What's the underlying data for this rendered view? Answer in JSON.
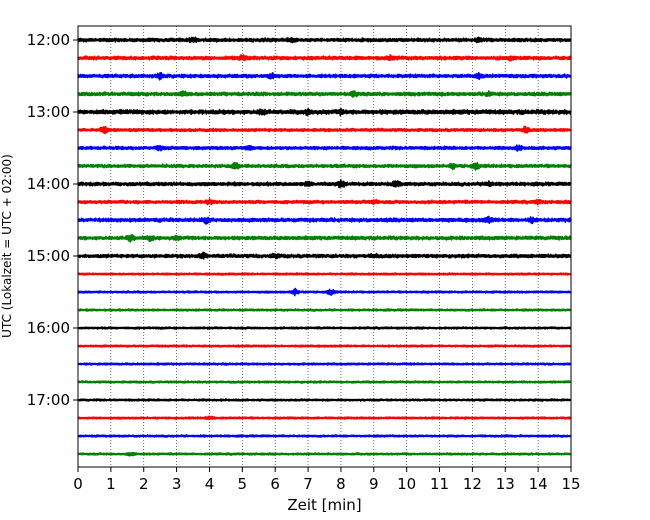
{
  "chart_data": {
    "type": "line",
    "chart_kind": "helicorder",
    "xlabel": "Zeit  [min]",
    "ylabel": "UTC (Lokalzeit = UTC + 02:00)",
    "xlim": [
      0,
      15
    ],
    "x_ticks": [
      "0",
      "1",
      "2",
      "3",
      "4",
      "5",
      "6",
      "7",
      "8",
      "9",
      "10",
      "11",
      "12",
      "13",
      "14",
      "15"
    ],
    "y_ticks": [
      "12:00",
      "13:00",
      "14:00",
      "15:00",
      "16:00",
      "17:00"
    ],
    "vertical_grid": "dotted",
    "colors": [
      "#000000",
      "#ff0000",
      "#0000ff",
      "#008000"
    ],
    "traces": [
      {
        "start": "12:00",
        "color": "#000000",
        "amplitude": 0.22,
        "events": [
          [
            3.5,
            0.35
          ],
          [
            6.5,
            0.3
          ],
          [
            12.2,
            0.3
          ]
        ]
      },
      {
        "start": "12:15",
        "color": "#ff0000",
        "amplitude": 0.22,
        "events": [
          [
            5.0,
            0.3
          ],
          [
            9.5,
            0.25
          ],
          [
            13.2,
            0.3
          ]
        ]
      },
      {
        "start": "12:30",
        "color": "#0000ff",
        "amplitude": 0.22,
        "events": [
          [
            2.5,
            0.35
          ],
          [
            5.9,
            0.3
          ],
          [
            12.2,
            0.3
          ]
        ]
      },
      {
        "start": "12:45",
        "color": "#008000",
        "amplitude": 0.22,
        "events": [
          [
            3.2,
            0.3
          ],
          [
            8.4,
            0.35
          ],
          [
            12.5,
            0.25
          ]
        ]
      },
      {
        "start": "13:00",
        "color": "#000000",
        "amplitude": 0.28,
        "events": [
          [
            5.6,
            0.35
          ],
          [
            7.0,
            0.3
          ],
          [
            8.0,
            0.3
          ]
        ]
      },
      {
        "start": "13:15",
        "color": "#ff0000",
        "amplitude": 0.18,
        "events": [
          [
            0.8,
            0.4
          ],
          [
            13.6,
            0.35
          ]
        ]
      },
      {
        "start": "13:30",
        "color": "#0000ff",
        "amplitude": 0.2,
        "events": [
          [
            2.5,
            0.3
          ],
          [
            5.2,
            0.25
          ],
          [
            13.4,
            0.3
          ]
        ]
      },
      {
        "start": "13:45",
        "color": "#008000",
        "amplitude": 0.2,
        "events": [
          [
            4.8,
            0.35
          ],
          [
            11.4,
            0.3
          ],
          [
            12.1,
            0.35
          ]
        ]
      },
      {
        "start": "14:00",
        "color": "#000000",
        "amplitude": 0.22,
        "events": [
          [
            7.0,
            0.3
          ],
          [
            8.0,
            0.4
          ],
          [
            9.7,
            0.35
          ],
          [
            12.5,
            0.3
          ]
        ]
      },
      {
        "start": "14:15",
        "color": "#ff0000",
        "amplitude": 0.2,
        "events": [
          [
            4.0,
            0.25
          ],
          [
            9.0,
            0.25
          ],
          [
            14.0,
            0.25
          ]
        ]
      },
      {
        "start": "14:30",
        "color": "#0000ff",
        "amplitude": 0.24,
        "events": [
          [
            3.9,
            0.35
          ],
          [
            12.5,
            0.35
          ],
          [
            13.8,
            0.3
          ]
        ]
      },
      {
        "start": "14:45",
        "color": "#008000",
        "amplitude": 0.22,
        "events": [
          [
            1.6,
            0.4
          ],
          [
            2.2,
            0.3
          ],
          [
            3.0,
            0.25
          ]
        ]
      },
      {
        "start": "15:00",
        "color": "#000000",
        "amplitude": 0.22,
        "events": [
          [
            3.8,
            0.35
          ],
          [
            6.0,
            0.3
          ],
          [
            9.0,
            0.25
          ]
        ]
      },
      {
        "start": "15:15",
        "color": "#ff0000",
        "amplitude": 0.12,
        "events": []
      },
      {
        "start": "15:30",
        "color": "#0000ff",
        "amplitude": 0.12,
        "events": [
          [
            6.6,
            0.35
          ],
          [
            7.7,
            0.3
          ]
        ]
      },
      {
        "start": "15:45",
        "color": "#008000",
        "amplitude": 0.12,
        "events": []
      },
      {
        "start": "16:00",
        "color": "#000000",
        "amplitude": 0.12,
        "events": []
      },
      {
        "start": "16:15",
        "color": "#ff0000",
        "amplitude": 0.12,
        "events": []
      },
      {
        "start": "16:30",
        "color": "#0000ff",
        "amplitude": 0.12,
        "events": []
      },
      {
        "start": "16:45",
        "color": "#008000",
        "amplitude": 0.12,
        "events": []
      },
      {
        "start": "17:00",
        "color": "#000000",
        "amplitude": 0.12,
        "events": []
      },
      {
        "start": "17:15",
        "color": "#ff0000",
        "amplitude": 0.12,
        "events": [
          [
            4.0,
            0.2
          ]
        ]
      },
      {
        "start": "17:30",
        "color": "#0000ff",
        "amplitude": 0.12,
        "events": []
      },
      {
        "start": "17:45",
        "color": "#008000",
        "amplitude": 0.12,
        "events": [
          [
            1.6,
            0.2
          ]
        ]
      }
    ]
  }
}
